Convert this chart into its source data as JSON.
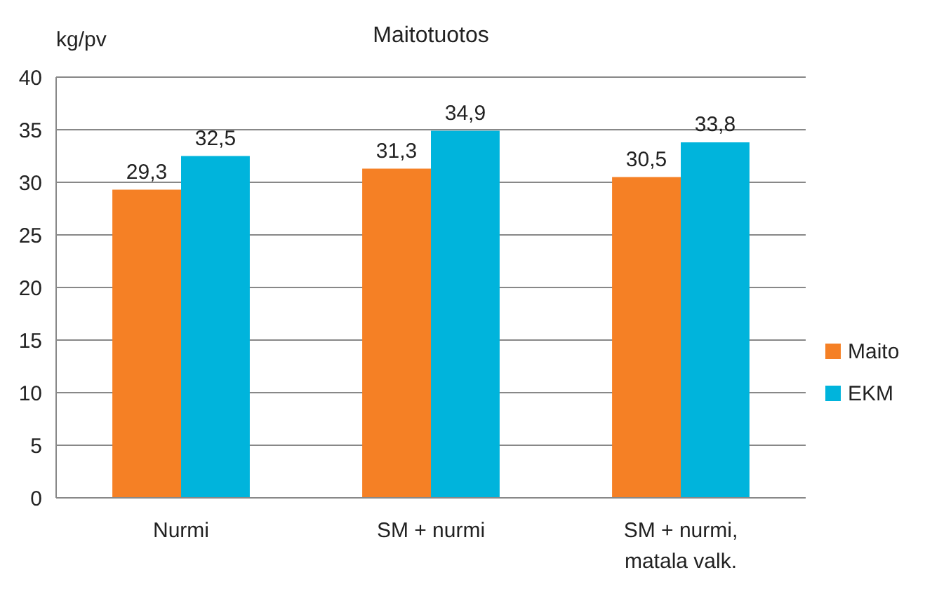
{
  "chart_data": {
    "type": "bar",
    "title": "Maitotuotos",
    "ylabel": "kg/pv",
    "categories": [
      "Nurmi",
      "SM + nurmi",
      "SM + nurmi, matala valk."
    ],
    "series": [
      {
        "name": "Maito",
        "color": "#f58025",
        "values": [
          29.3,
          31.3,
          30.5
        ],
        "value_labels": [
          "29,3",
          "31,3",
          "30,5"
        ]
      },
      {
        "name": "EKM",
        "color": "#00b4dc",
        "values": [
          32.5,
          34.9,
          33.8
        ],
        "value_labels": [
          "32,5",
          "34,9",
          "33,8"
        ]
      }
    ],
    "ylim": [
      0,
      40
    ],
    "yticks": [
      0,
      5,
      10,
      15,
      20,
      25,
      30,
      35,
      40
    ],
    "grid": "y",
    "legend": "right"
  }
}
